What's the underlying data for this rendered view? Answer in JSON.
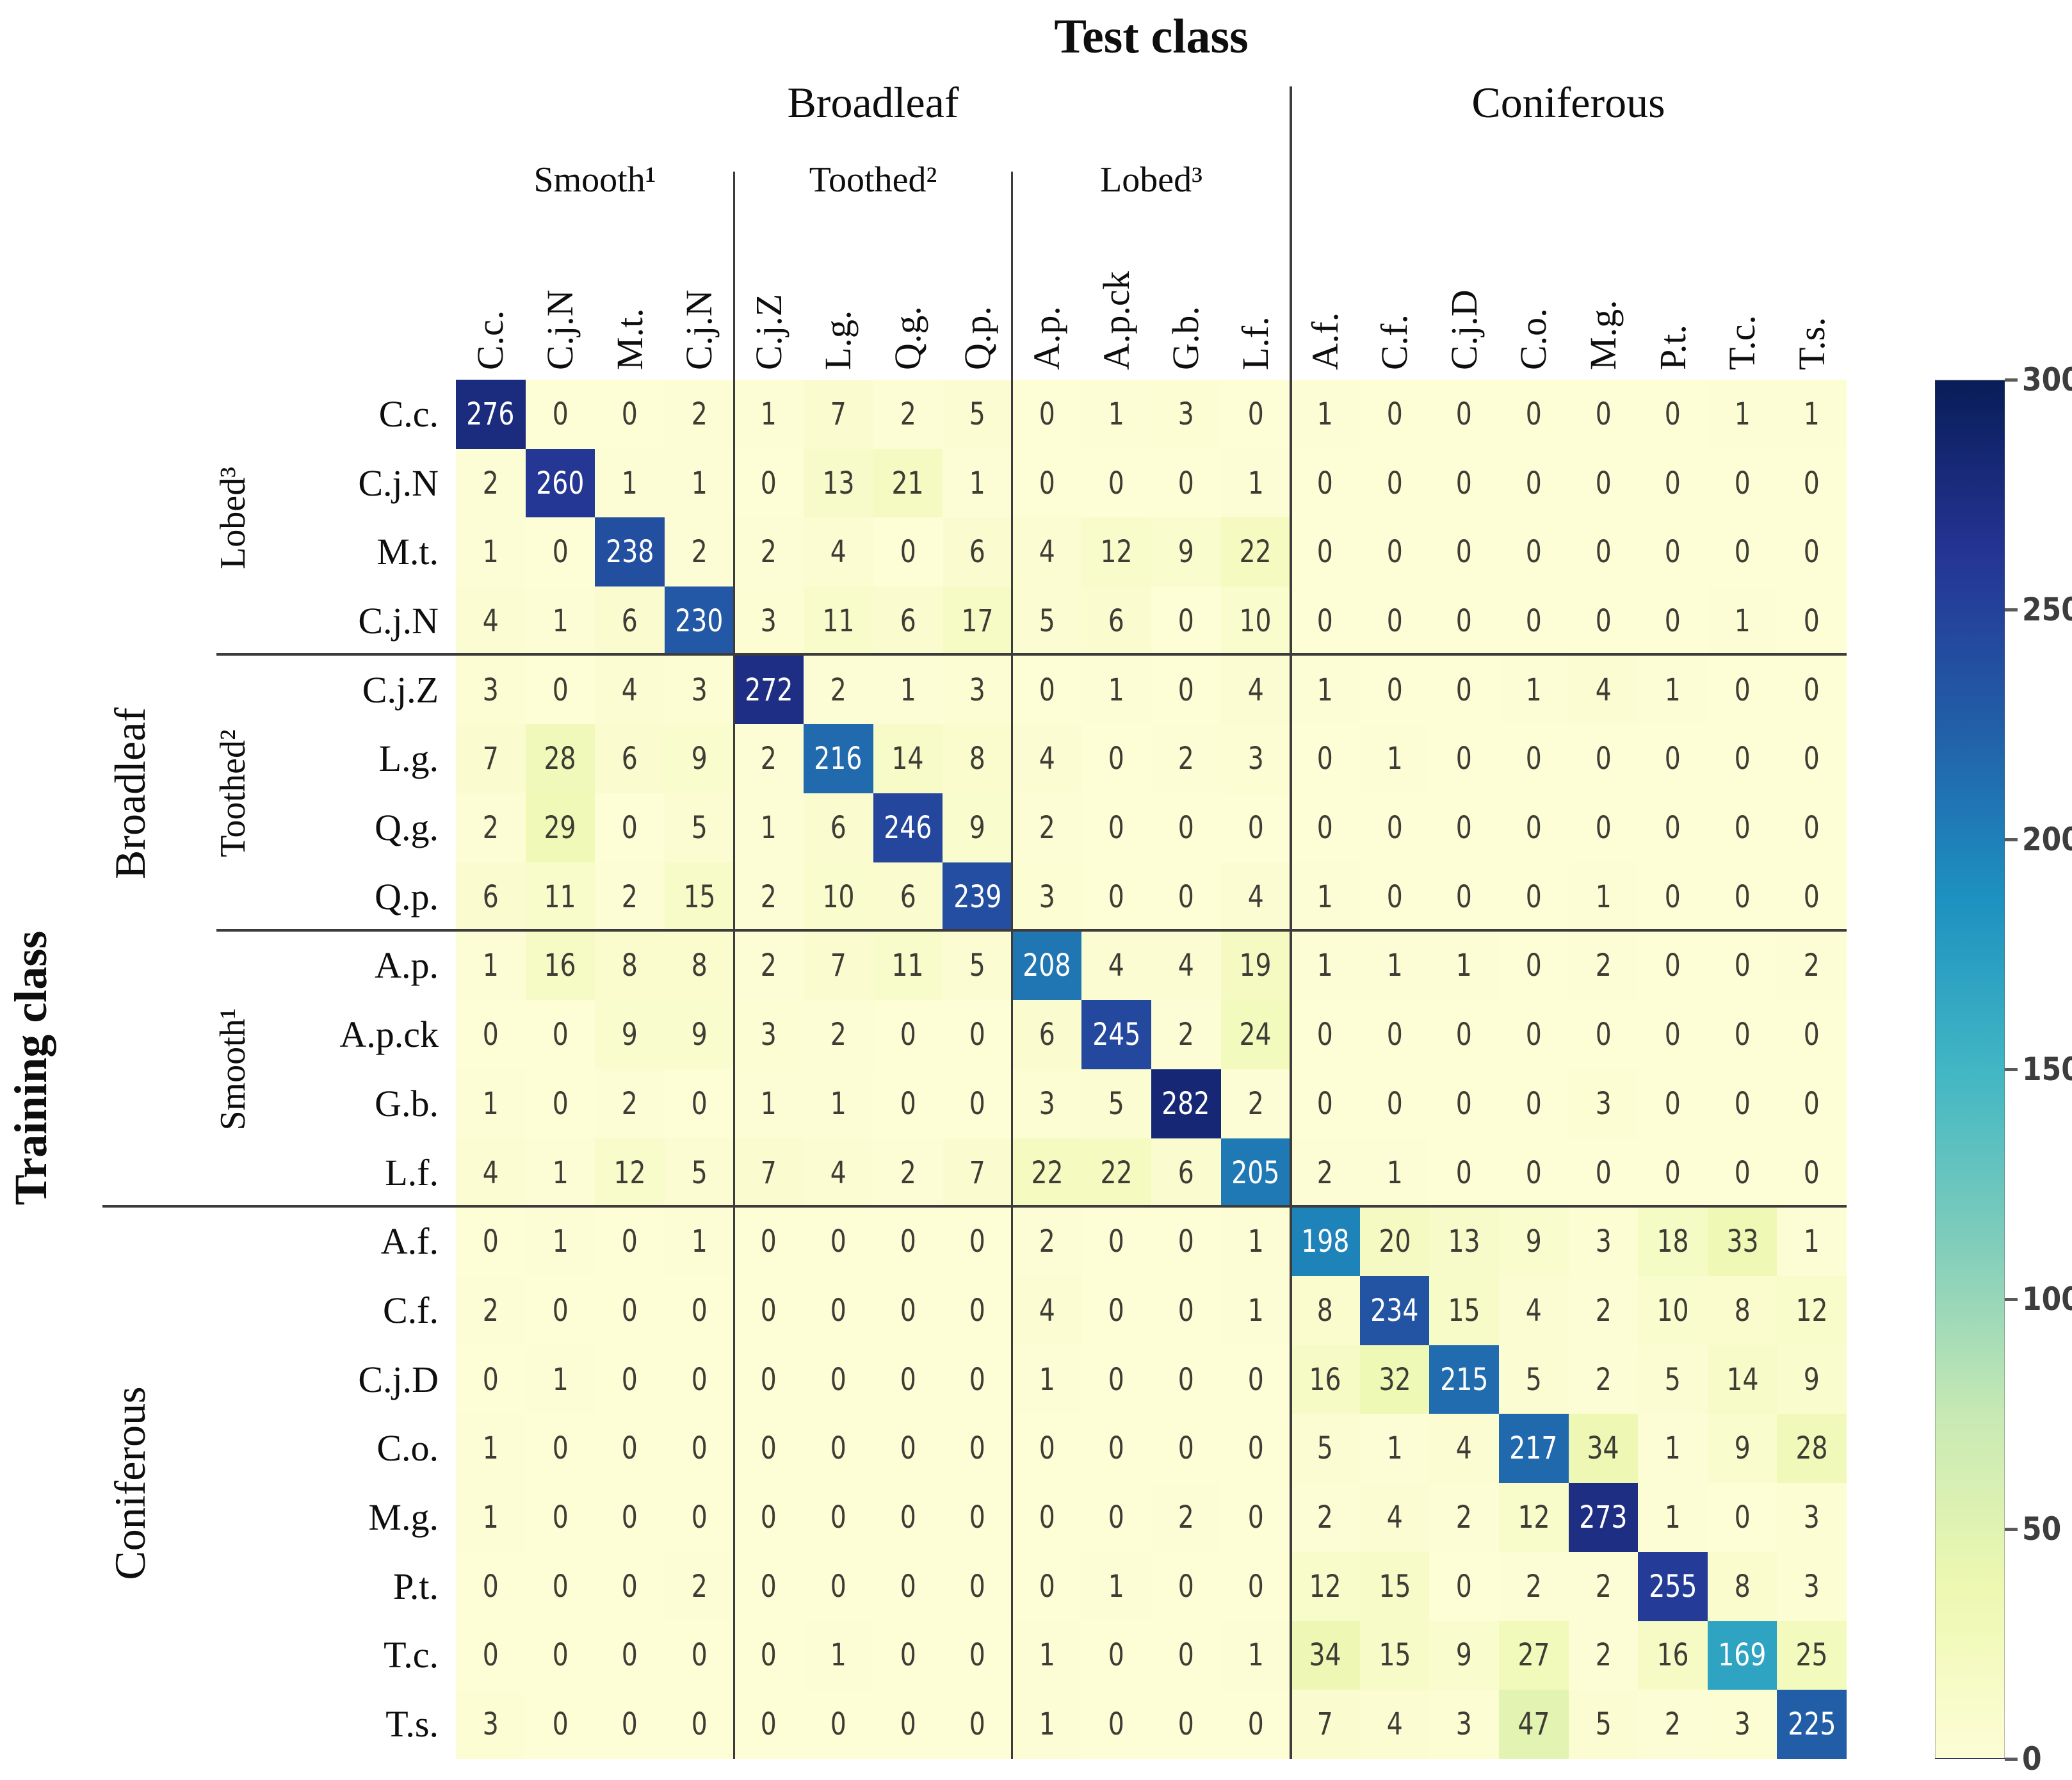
{
  "figure": {
    "title": "Test class",
    "y_axis_title": "Training class"
  },
  "col_axis": {
    "groups": [
      {
        "label": "Broadleaf",
        "span": 12
      },
      {
        "label": "Coniferous",
        "span": 8
      }
    ],
    "subgroups": [
      {
        "label": "Smooth¹",
        "span": 4
      },
      {
        "label": "Toothed²",
        "span": 4
      },
      {
        "label": "Lobed³",
        "span": 4
      }
    ]
  },
  "row_axis": {
    "groups": [
      {
        "label": "Broadleaf",
        "span": 12
      },
      {
        "label": "Coniferous",
        "span": 8
      }
    ],
    "subgroups": [
      {
        "label": "Lobed³",
        "span": 4
      },
      {
        "label": "Toothed²",
        "span": 4
      },
      {
        "label": "Smooth¹",
        "span": 4
      }
    ]
  },
  "chart_data": {
    "type": "heatmap",
    "title": "Test class",
    "xlabel": "Test class",
    "ylabel": "Training class",
    "x_labels": [
      "C.c.",
      "C.j.N",
      "M.t.",
      "C.j.N",
      "C.j.Z",
      "L.g.",
      "Q.g.",
      "Q.p.",
      "A.p.",
      "A.p.ck",
      "G.b.",
      "L.f.",
      "A.f.",
      "C.f.",
      "C.j.D",
      "C.o.",
      "M.g.",
      "P.t.",
      "T.c.",
      "T.s."
    ],
    "y_labels": [
      "C.c.",
      "C.j.N",
      "M.t.",
      "C.j.N",
      "C.j.Z",
      "L.g.",
      "Q.g.",
      "Q.p.",
      "A.p.",
      "A.p.ck",
      "G.b.",
      "L.f.",
      "A.f.",
      "C.f.",
      "C.j.D",
      "C.o.",
      "M.g.",
      "P.t.",
      "T.c.",
      "T.s."
    ],
    "matrix": [
      [
        276,
        0,
        0,
        2,
        1,
        7,
        2,
        5,
        0,
        1,
        3,
        0,
        1,
        0,
        0,
        0,
        0,
        0,
        1,
        1
      ],
      [
        2,
        260,
        1,
        1,
        0,
        13,
        21,
        1,
        0,
        0,
        0,
        1,
        0,
        0,
        0,
        0,
        0,
        0,
        0,
        0
      ],
      [
        1,
        0,
        238,
        2,
        2,
        4,
        0,
        6,
        4,
        12,
        9,
        22,
        0,
        0,
        0,
        0,
        0,
        0,
        0,
        0
      ],
      [
        4,
        1,
        6,
        230,
        3,
        11,
        6,
        17,
        5,
        6,
        0,
        10,
        0,
        0,
        0,
        0,
        0,
        0,
        1,
        0
      ],
      [
        3,
        0,
        4,
        3,
        272,
        2,
        1,
        3,
        0,
        1,
        0,
        4,
        1,
        0,
        0,
        1,
        4,
        1,
        0,
        0
      ],
      [
        7,
        28,
        6,
        9,
        2,
        216,
        14,
        8,
        4,
        0,
        2,
        3,
        0,
        1,
        0,
        0,
        0,
        0,
        0,
        0
      ],
      [
        2,
        29,
        0,
        5,
        1,
        6,
        246,
        9,
        2,
        0,
        0,
        0,
        0,
        0,
        0,
        0,
        0,
        0,
        0,
        0
      ],
      [
        6,
        11,
        2,
        15,
        2,
        10,
        6,
        239,
        3,
        0,
        0,
        4,
        1,
        0,
        0,
        0,
        1,
        0,
        0,
        0
      ],
      [
        1,
        16,
        8,
        8,
        2,
        7,
        11,
        5,
        208,
        4,
        4,
        19,
        1,
        1,
        1,
        0,
        2,
        0,
        0,
        2
      ],
      [
        0,
        0,
        9,
        9,
        3,
        2,
        0,
        0,
        6,
        245,
        2,
        24,
        0,
        0,
        0,
        0,
        0,
        0,
        0,
        0
      ],
      [
        1,
        0,
        2,
        0,
        1,
        1,
        0,
        0,
        3,
        5,
        282,
        2,
        0,
        0,
        0,
        0,
        3,
        0,
        0,
        0
      ],
      [
        4,
        1,
        12,
        5,
        7,
        4,
        2,
        7,
        22,
        22,
        6,
        205,
        2,
        1,
        0,
        0,
        0,
        0,
        0,
        0
      ],
      [
        0,
        1,
        0,
        1,
        0,
        0,
        0,
        0,
        2,
        0,
        0,
        1,
        198,
        20,
        13,
        9,
        3,
        18,
        33,
        1
      ],
      [
        2,
        0,
        0,
        0,
        0,
        0,
        0,
        0,
        4,
        0,
        0,
        1,
        8,
        234,
        15,
        4,
        2,
        10,
        8,
        12
      ],
      [
        0,
        1,
        0,
        0,
        0,
        0,
        0,
        0,
        1,
        0,
        0,
        0,
        16,
        32,
        215,
        5,
        2,
        5,
        14,
        9
      ],
      [
        1,
        0,
        0,
        0,
        0,
        0,
        0,
        0,
        0,
        0,
        0,
        0,
        5,
        1,
        4,
        217,
        34,
        1,
        9,
        28
      ],
      [
        1,
        0,
        0,
        0,
        0,
        0,
        0,
        0,
        0,
        0,
        2,
        0,
        2,
        4,
        2,
        12,
        273,
        1,
        0,
        3
      ],
      [
        0,
        0,
        0,
        2,
        0,
        0,
        0,
        0,
        0,
        1,
        0,
        0,
        12,
        15,
        0,
        2,
        2,
        255,
        8,
        3
      ],
      [
        0,
        0,
        0,
        0,
        0,
        1,
        0,
        0,
        1,
        0,
        0,
        1,
        34,
        15,
        9,
        27,
        2,
        16,
        169,
        25
      ],
      [
        3,
        0,
        0,
        0,
        0,
        0,
        0,
        0,
        1,
        0,
        0,
        0,
        7,
        4,
        3,
        47,
        5,
        2,
        3,
        225
      ]
    ],
    "vmin": 0,
    "vmax": 300,
    "colormap": "YlGnBu",
    "colormap_stops": [
      "#fdfdd6",
      "#edf8b1",
      "#c7e9b4",
      "#7fcdbb",
      "#41b6c4",
      "#1d91c0",
      "#225ea8",
      "#253494",
      "#081d58"
    ],
    "colorbar_ticks": [
      300,
      250,
      200,
      150,
      100,
      50,
      0
    ],
    "legend_position": "right",
    "grid": false
  },
  "style": {
    "background": "#ffffff",
    "separator_line_color": "#3c3c3c",
    "cell_text_dark": "#3d3d35",
    "cell_text_light": "#ffffff",
    "tick_label_color": "#3d3d3d",
    "white_text_threshold": 150
  }
}
